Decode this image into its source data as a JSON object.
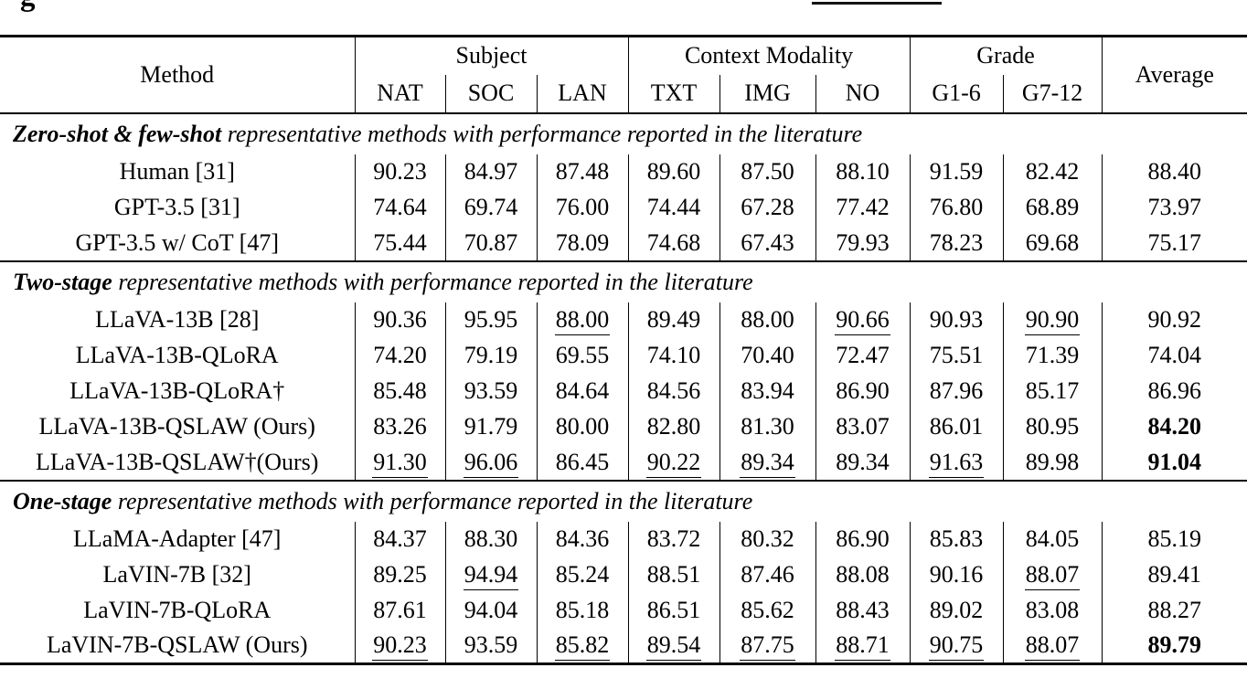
{
  "colors": {
    "text": "#000000",
    "background": "#ffffff",
    "rule": "#000000"
  },
  "fragments": {
    "caption_tail_letter": "g"
  },
  "table": {
    "header": {
      "method": "Method",
      "groups": [
        {
          "label": "Subject",
          "cols": [
            "NAT",
            "SOC",
            "LAN"
          ]
        },
        {
          "label": "Context Modality",
          "cols": [
            "TXT",
            "IMG",
            "NO"
          ]
        },
        {
          "label": "Grade",
          "cols": [
            "G1-6",
            "G7-12"
          ]
        }
      ],
      "average": "Average"
    },
    "sections": [
      {
        "title_lead": "Zero-shot & few-shot",
        "title_rest": " representative methods with performance reported in the literature",
        "rows": [
          {
            "method": "Human [31]",
            "values": [
              "90.23",
              "84.97",
              "87.48",
              "89.60",
              "87.50",
              "88.10",
              "91.59",
              "82.42",
              "88.40"
            ],
            "underlined": [
              false,
              false,
              false,
              false,
              false,
              false,
              false,
              false,
              false
            ],
            "avg_bold": false
          },
          {
            "method": "GPT-3.5 [31]",
            "values": [
              "74.64",
              "69.74",
              "76.00",
              "74.44",
              "67.28",
              "77.42",
              "76.80",
              "68.89",
              "73.97"
            ],
            "underlined": [
              false,
              false,
              false,
              false,
              false,
              false,
              false,
              false,
              false
            ],
            "avg_bold": false
          },
          {
            "method": "GPT-3.5 w/ CoT [47]",
            "values": [
              "75.44",
              "70.87",
              "78.09",
              "74.68",
              "67.43",
              "79.93",
              "78.23",
              "69.68",
              "75.17"
            ],
            "underlined": [
              false,
              false,
              false,
              false,
              false,
              false,
              false,
              false,
              false
            ],
            "avg_bold": false
          }
        ]
      },
      {
        "title_lead": "Two-stage",
        "title_rest": " representative methods with performance reported in the literature",
        "rows": [
          {
            "method": "LLaVA-13B [28]",
            "values": [
              "90.36",
              "95.95",
              "88.00",
              "89.49",
              "88.00",
              "90.66",
              "90.93",
              "90.90",
              "90.92"
            ],
            "underlined": [
              false,
              false,
              true,
              false,
              false,
              true,
              false,
              true,
              false
            ],
            "avg_bold": false
          },
          {
            "method": "LLaVA-13B-QLoRA",
            "values": [
              "74.20",
              "79.19",
              "69.55",
              "74.10",
              "70.40",
              "72.47",
              "75.51",
              "71.39",
              "74.04"
            ],
            "underlined": [
              false,
              false,
              false,
              false,
              false,
              false,
              false,
              false,
              false
            ],
            "avg_bold": false
          },
          {
            "method": "LLaVA-13B-QLoRA†",
            "values": [
              "85.48",
              "93.59",
              "84.64",
              "84.56",
              "83.94",
              "86.90",
              "87.96",
              "85.17",
              "86.96"
            ],
            "underlined": [
              false,
              false,
              false,
              false,
              false,
              false,
              false,
              false,
              false
            ],
            "avg_bold": false
          },
          {
            "method": "LLaVA-13B-QSLAW (Ours)",
            "values": [
              "83.26",
              "91.79",
              "80.00",
              "82.80",
              "81.30",
              "83.07",
              "86.01",
              "80.95",
              "84.20"
            ],
            "underlined": [
              false,
              false,
              false,
              false,
              false,
              false,
              false,
              false,
              false
            ],
            "avg_bold": true
          },
          {
            "method": "LLaVA-13B-QSLAW†(Ours)",
            "values": [
              "91.30",
              "96.06",
              "86.45",
              "90.22",
              "89.34",
              "89.34",
              "91.63",
              "89.98",
              "91.04"
            ],
            "underlined": [
              true,
              true,
              false,
              true,
              true,
              false,
              true,
              false,
              false
            ],
            "avg_bold": true
          }
        ]
      },
      {
        "title_lead": "One-stage",
        "title_rest": " representative methods with performance reported in the literature",
        "rows": [
          {
            "method": "LLaMA-Adapter [47]",
            "values": [
              "84.37",
              "88.30",
              "84.36",
              "83.72",
              "80.32",
              "86.90",
              "85.83",
              "84.05",
              "85.19"
            ],
            "underlined": [
              false,
              false,
              false,
              false,
              false,
              false,
              false,
              false,
              false
            ],
            "avg_bold": false
          },
          {
            "method": "LaVIN-7B [32]",
            "values": [
              "89.25",
              "94.94",
              "85.24",
              "88.51",
              "87.46",
              "88.08",
              "90.16",
              "88.07",
              "89.41"
            ],
            "underlined": [
              false,
              true,
              false,
              false,
              false,
              false,
              false,
              true,
              false
            ],
            "avg_bold": false
          },
          {
            "method": "LaVIN-7B-QLoRA",
            "values": [
              "87.61",
              "94.04",
              "85.18",
              "86.51",
              "85.62",
              "88.43",
              "89.02",
              "83.08",
              "88.27"
            ],
            "underlined": [
              false,
              false,
              false,
              false,
              false,
              false,
              false,
              false,
              false
            ],
            "avg_bold": false
          },
          {
            "method": "LaVIN-7B-QSLAW (Ours)",
            "values": [
              "90.23",
              "93.59",
              "85.82",
              "89.54",
              "87.75",
              "88.71",
              "90.75",
              "88.07",
              "89.79"
            ],
            "underlined": [
              true,
              false,
              true,
              true,
              true,
              true,
              true,
              true,
              false
            ],
            "avg_bold": true
          }
        ]
      }
    ]
  }
}
